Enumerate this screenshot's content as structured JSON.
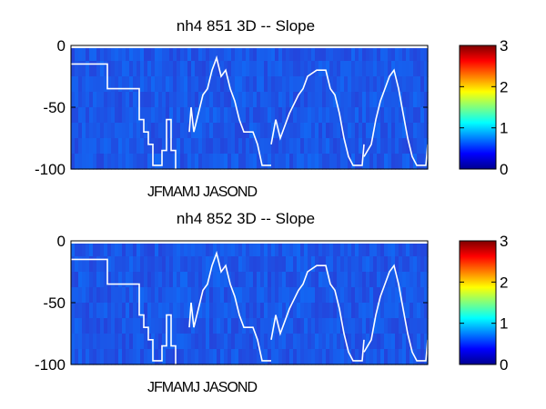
{
  "chart_data": [
    {
      "type": "heatmap",
      "title": "nh4  851 3D   -- Slope",
      "xlabel": "",
      "ylabel": "",
      "ylim": [
        -100,
        0
      ],
      "yticks": [
        0,
        -50,
        -100
      ],
      "x_month_labels": [
        "J",
        "F",
        "M",
        "A",
        "M",
        "J",
        "J",
        "A",
        "S",
        "O",
        "N",
        "D"
      ],
      "colorbar": {
        "colormap": "jet",
        "range": [
          0,
          3
        ],
        "ticks": [
          0,
          1,
          2,
          3
        ]
      },
      "background_value": 0.3,
      "mixed_layer_depth_line": {
        "color": "#ffffff",
        "segments": [
          [
            [
              0,
              -15
            ],
            [
              40,
              -15
            ],
            [
              40,
              -35
            ],
            [
              75,
              -35
            ],
            [
              75,
              -60
            ],
            [
              80,
              -60
            ],
            [
              80,
              -70
            ],
            [
              85,
              -70
            ],
            [
              85,
              -80
            ],
            [
              90,
              -80
            ],
            [
              90,
              -97
            ],
            [
              100,
              -97
            ],
            [
              100,
              -85
            ],
            [
              105,
              -85
            ],
            [
              105,
              -60
            ],
            [
              110,
              -60
            ],
            [
              110,
              -85
            ],
            [
              115,
              -85
            ],
            [
              115,
              -100
            ]
          ],
          [
            [
              130,
              -70
            ],
            [
              132,
              -50
            ],
            [
              135,
              -70
            ],
            [
              140,
              -55
            ],
            [
              145,
              -40
            ],
            [
              150,
              -35
            ],
            [
              155,
              -20
            ],
            [
              160,
              -10
            ],
            [
              165,
              -25
            ],
            [
              170,
              -20
            ],
            [
              175,
              -35
            ],
            [
              180,
              -45
            ],
            [
              185,
              -60
            ],
            [
              190,
              -70
            ],
            [
              200,
              -70
            ],
            [
              205,
              -80
            ],
            [
              210,
              -97
            ],
            [
              220,
              -97
            ]
          ],
          [
            [
              220,
              -80
            ],
            [
              225,
              -60
            ],
            [
              230,
              -75
            ],
            [
              240,
              -55
            ],
            [
              250,
              -40
            ],
            [
              255,
              -35
            ],
            [
              260,
              -25
            ],
            [
              270,
              -20
            ],
            [
              280,
              -20
            ],
            [
              285,
              -35
            ],
            [
              290,
              -40
            ],
            [
              295,
              -55
            ],
            [
              300,
              -75
            ],
            [
              305,
              -90
            ],
            [
              310,
              -97
            ],
            [
              320,
              -97
            ],
            [
              322,
              -80
            ]
          ],
          [
            [
              322,
              -90
            ],
            [
              330,
              -80
            ],
            [
              335,
              -60
            ],
            [
              340,
              -45
            ],
            [
              345,
              -35
            ],
            [
              350,
              -25
            ],
            [
              355,
              -20
            ],
            [
              360,
              -35
            ],
            [
              365,
              -55
            ],
            [
              370,
              -75
            ],
            [
              375,
              -90
            ],
            [
              380,
              -97
            ],
            [
              390,
              -97
            ],
            [
              392,
              -80
            ]
          ]
        ]
      }
    },
    {
      "type": "heatmap",
      "title": "nh4  852 3D   -- Slope",
      "xlabel": "",
      "ylabel": "",
      "ylim": [
        -100,
        0
      ],
      "yticks": [
        0,
        -50,
        -100
      ],
      "x_month_labels": [
        "J",
        "F",
        "M",
        "A",
        "M",
        "J",
        "J",
        "A",
        "S",
        "O",
        "N",
        "D"
      ],
      "colorbar": {
        "colormap": "jet",
        "range": [
          0,
          3
        ],
        "ticks": [
          0,
          1,
          2,
          3
        ]
      },
      "background_value": 0.3,
      "mixed_layer_depth_line": {
        "color": "#ffffff",
        "segments": [
          [
            [
              0,
              -15
            ],
            [
              40,
              -15
            ],
            [
              40,
              -35
            ],
            [
              75,
              -35
            ],
            [
              75,
              -60
            ],
            [
              80,
              -60
            ],
            [
              80,
              -70
            ],
            [
              85,
              -70
            ],
            [
              85,
              -80
            ],
            [
              90,
              -80
            ],
            [
              90,
              -97
            ],
            [
              100,
              -97
            ],
            [
              100,
              -85
            ],
            [
              105,
              -85
            ],
            [
              105,
              -60
            ],
            [
              110,
              -60
            ],
            [
              110,
              -85
            ],
            [
              115,
              -85
            ],
            [
              115,
              -100
            ]
          ],
          [
            [
              130,
              -70
            ],
            [
              132,
              -50
            ],
            [
              135,
              -70
            ],
            [
              140,
              -55
            ],
            [
              145,
              -40
            ],
            [
              150,
              -35
            ],
            [
              155,
              -20
            ],
            [
              160,
              -10
            ],
            [
              165,
              -25
            ],
            [
              170,
              -20
            ],
            [
              175,
              -35
            ],
            [
              180,
              -45
            ],
            [
              185,
              -60
            ],
            [
              190,
              -70
            ],
            [
              200,
              -70
            ],
            [
              205,
              -80
            ],
            [
              210,
              -97
            ],
            [
              220,
              -97
            ]
          ],
          [
            [
              220,
              -80
            ],
            [
              225,
              -60
            ],
            [
              230,
              -75
            ],
            [
              240,
              -55
            ],
            [
              250,
              -40
            ],
            [
              255,
              -35
            ],
            [
              260,
              -25
            ],
            [
              270,
              -20
            ],
            [
              280,
              -20
            ],
            [
              285,
              -35
            ],
            [
              290,
              -40
            ],
            [
              295,
              -55
            ],
            [
              300,
              -75
            ],
            [
              305,
              -90
            ],
            [
              310,
              -97
            ],
            [
              320,
              -97
            ],
            [
              322,
              -80
            ]
          ],
          [
            [
              322,
              -90
            ],
            [
              330,
              -80
            ],
            [
              335,
              -60
            ],
            [
              340,
              -45
            ],
            [
              345,
              -35
            ],
            [
              350,
              -25
            ],
            [
              355,
              -20
            ],
            [
              360,
              -35
            ],
            [
              365,
              -55
            ],
            [
              370,
              -75
            ],
            [
              375,
              -90
            ],
            [
              380,
              -97
            ],
            [
              390,
              -97
            ],
            [
              392,
              -80
            ]
          ]
        ]
      }
    }
  ]
}
